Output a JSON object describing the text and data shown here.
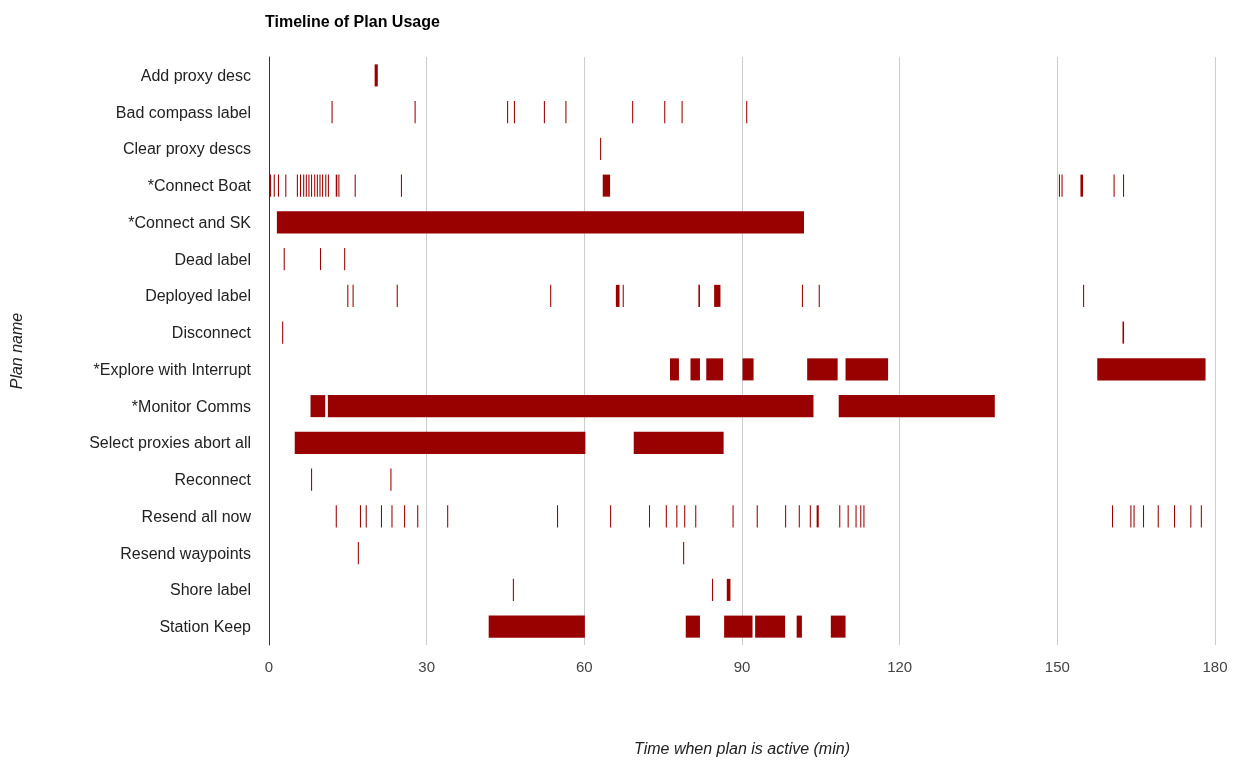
{
  "chart_data": {
    "type": "bar",
    "orientation": "horizontal",
    "title": "Timeline of Plan Usage",
    "xlabel": "Time when plan is active (min)",
    "ylabel": "Plan name",
    "categories": [
      "Add proxy desc",
      "Bad compass label",
      "Clear proxy descs",
      "*Connect Boat",
      "*Connect and SK",
      "Dead label",
      "Deployed label",
      "Disconnect",
      "*Explore with Interrupt",
      "*Monitor Comms",
      "Select proxies abort all",
      "Reconnect",
      "Resend all now",
      "Resend waypoints",
      "Shore label",
      "Station Keep"
    ],
    "xlim": [
      0,
      180
    ],
    "xticks": [
      0,
      30,
      60,
      90,
      120,
      150,
      180
    ],
    "grid": "x",
    "series": [
      {
        "color": "#990000",
        "base": [
          20.1,
          11.9,
          63.0,
          0.2,
          1.5,
          2.8,
          14.9,
          2.5,
          76.3,
          7.9,
          4.9,
          8.0,
          12.7,
          16.9,
          46.4,
          41.8
        ],
        "values": [
          0.6,
          0.2,
          0.2,
          0.2,
          100.3,
          0.2,
          0.2,
          0.2,
          1.7,
          2.8,
          55.3,
          0.2,
          0.2,
          0.2,
          0.2,
          18.3
        ]
      },
      {
        "color": "#990000",
        "base": [
          null,
          27.7,
          null,
          0.9,
          null,
          9.7,
          15.9,
          162.4,
          80.2,
          11.2,
          69.4,
          23.1,
          17.3,
          78.8,
          84.3,
          79.3
        ],
        "values": [
          null,
          0.2,
          null,
          0.2,
          null,
          0.2,
          0.2,
          0.3,
          1.8,
          92.4,
          17.1,
          0.2,
          0.2,
          0.2,
          0.2,
          2.7
        ]
      },
      {
        "color": "#990000",
        "base": [
          null,
          45.3,
          null,
          1.7,
          null,
          14.3,
          24.3,
          null,
          83.2,
          108.4,
          null,
          null,
          18.4,
          null,
          87.1,
          86.6
        ],
        "values": [
          null,
          0.2,
          null,
          0.2,
          null,
          0.2,
          0.2,
          null,
          3.2,
          29.7,
          null,
          null,
          0.2,
          null,
          0.7,
          5.4
        ]
      },
      {
        "color": "#990000",
        "base": [
          null,
          46.6,
          null,
          3.1,
          null,
          null,
          53.5,
          null,
          90.1,
          null,
          null,
          null,
          21.3,
          null,
          null,
          92.5
        ],
        "values": [
          null,
          0.2,
          null,
          0.2,
          null,
          null,
          0.2,
          null,
          2.1,
          null,
          null,
          null,
          0.2,
          null,
          null,
          5.7
        ]
      },
      {
        "color": "#990000",
        "base": [
          null,
          52.3,
          null,
          5.3,
          null,
          null,
          66.0,
          null,
          102.4,
          null,
          null,
          null,
          23.3,
          null,
          null,
          100.4
        ],
        "values": [
          null,
          0.2,
          null,
          0.2,
          null,
          null,
          0.7,
          null,
          5.8,
          null,
          null,
          null,
          0.2,
          null,
          null,
          1.0
        ]
      },
      {
        "color": "#990000",
        "base": [
          null,
          56.4,
          null,
          5.9,
          null,
          null,
          67.3,
          null,
          109.7,
          null,
          null,
          null,
          25.7,
          null,
          null,
          106.9
        ],
        "values": [
          null,
          0.2,
          null,
          0.2,
          null,
          null,
          0.2,
          null,
          8.1,
          null,
          null,
          null,
          0.2,
          null,
          null,
          2.8
        ]
      },
      {
        "color": "#990000",
        "base": [
          null,
          69.1,
          null,
          6.5,
          null,
          null,
          81.7,
          null,
          157.6,
          null,
          null,
          null,
          28.2,
          null,
          null,
          null
        ],
        "values": [
          null,
          0.2,
          null,
          0.2,
          null,
          null,
          0.3,
          null,
          20.6,
          null,
          null,
          null,
          0.2,
          null,
          null,
          null
        ]
      },
      {
        "color": "#990000",
        "base": [
          null,
          75.2,
          null,
          7.0,
          null,
          null,
          84.7,
          null,
          null,
          null,
          null,
          null,
          33.9,
          null,
          null,
          null
        ],
        "values": [
          null,
          0.2,
          null,
          0.2,
          null,
          null,
          1.2,
          null,
          null,
          null,
          null,
          null,
          0.2,
          null,
          null,
          null
        ]
      },
      {
        "color": "#990000",
        "base": [
          null,
          78.5,
          null,
          7.5,
          null,
          null,
          101.4,
          null,
          null,
          null,
          null,
          null,
          54.8,
          null,
          null,
          null
        ],
        "values": [
          null,
          0.2,
          null,
          0.2,
          null,
          null,
          0.2,
          null,
          null,
          null,
          null,
          null,
          0.2,
          null,
          null,
          null
        ]
      },
      {
        "color": "#990000",
        "base": [
          null,
          90.8,
          null,
          8.0,
          null,
          null,
          104.6,
          null,
          null,
          null,
          null,
          null,
          64.9,
          null,
          null,
          null
        ],
        "values": [
          null,
          0.2,
          null,
          0.2,
          null,
          null,
          0.2,
          null,
          null,
          null,
          null,
          null,
          0.2,
          null,
          null,
          null
        ]
      },
      {
        "color": "#990000",
        "base": [
          null,
          null,
          null,
          8.6,
          null,
          null,
          154.9,
          null,
          null,
          null,
          null,
          null,
          72.3,
          null,
          null,
          null
        ],
        "values": [
          null,
          null,
          null,
          0.2,
          null,
          null,
          0.2,
          null,
          null,
          null,
          null,
          null,
          0.2,
          null,
          null,
          null
        ]
      },
      {
        "color": "#990000",
        "base": [
          null,
          null,
          null,
          9.1,
          null,
          null,
          null,
          null,
          null,
          null,
          null,
          null,
          75.5,
          null,
          null,
          null
        ],
        "values": [
          null,
          null,
          null,
          0.2,
          null,
          null,
          null,
          null,
          null,
          null,
          null,
          null,
          0.2,
          null,
          null,
          null
        ]
      },
      {
        "color": "#990000",
        "base": [
          null,
          null,
          null,
          9.6,
          null,
          null,
          null,
          null,
          null,
          null,
          null,
          null,
          77.5,
          null,
          null,
          null
        ],
        "values": [
          null,
          null,
          null,
          0.2,
          null,
          null,
          null,
          null,
          null,
          null,
          null,
          null,
          0.2,
          null,
          null,
          null
        ]
      },
      {
        "color": "#990000",
        "base": [
          null,
          null,
          null,
          10.1,
          null,
          null,
          null,
          null,
          null,
          null,
          null,
          null,
          79.0,
          null,
          null,
          null
        ],
        "values": [
          null,
          null,
          null,
          0.2,
          null,
          null,
          null,
          null,
          null,
          null,
          null,
          null,
          0.2,
          null,
          null,
          null
        ]
      },
      {
        "color": "#990000",
        "base": [
          null,
          null,
          null,
          10.7,
          null,
          null,
          null,
          null,
          null,
          null,
          null,
          null,
          81.1,
          null,
          null,
          null
        ],
        "values": [
          null,
          null,
          null,
          0.2,
          null,
          null,
          null,
          null,
          null,
          null,
          null,
          null,
          0.2,
          null,
          null,
          null
        ]
      },
      {
        "color": "#990000",
        "base": [
          null,
          null,
          null,
          11.2,
          null,
          null,
          null,
          null,
          null,
          null,
          null,
          null,
          88.2,
          null,
          null,
          null
        ],
        "values": [
          null,
          null,
          null,
          0.2,
          null,
          null,
          null,
          null,
          null,
          null,
          null,
          null,
          0.2,
          null,
          null,
          null
        ]
      },
      {
        "color": "#990000",
        "base": [
          null,
          null,
          null,
          12.7,
          null,
          null,
          null,
          null,
          null,
          null,
          null,
          null,
          92.8,
          null,
          null,
          null
        ],
        "values": [
          null,
          null,
          null,
          0.3,
          null,
          null,
          null,
          null,
          null,
          null,
          null,
          null,
          0.2,
          null,
          null,
          null
        ]
      },
      {
        "color": "#990000",
        "base": [
          null,
          null,
          null,
          13.2,
          null,
          null,
          null,
          null,
          null,
          null,
          null,
          null,
          98.2,
          null,
          null,
          null
        ],
        "values": [
          null,
          null,
          null,
          0.2,
          null,
          null,
          null,
          null,
          null,
          null,
          null,
          null,
          0.2,
          null,
          null,
          null
        ]
      },
      {
        "color": "#990000",
        "base": [
          null,
          null,
          null,
          16.3,
          null,
          null,
          null,
          null,
          null,
          null,
          null,
          null,
          100.8,
          null,
          null,
          null
        ],
        "values": [
          null,
          null,
          null,
          0.2,
          null,
          null,
          null,
          null,
          null,
          null,
          null,
          null,
          0.2,
          null,
          null,
          null
        ]
      },
      {
        "color": "#990000",
        "base": [
          null,
          null,
          null,
          25.1,
          null,
          null,
          null,
          null,
          null,
          null,
          null,
          null,
          102.9,
          null,
          null,
          null
        ],
        "values": [
          null,
          null,
          null,
          0.2,
          null,
          null,
          null,
          null,
          null,
          null,
          null,
          null,
          0.2,
          null,
          null,
          null
        ]
      },
      {
        "color": "#990000",
        "base": [
          null,
          null,
          null,
          63.5,
          null,
          null,
          null,
          null,
          null,
          null,
          null,
          null,
          104.2,
          null,
          null,
          null
        ],
        "values": [
          null,
          null,
          null,
          1.4,
          null,
          null,
          null,
          null,
          null,
          null,
          null,
          null,
          0.4,
          null,
          null,
          null
        ]
      },
      {
        "color": "#990000",
        "base": [
          null,
          null,
          null,
          150.3,
          null,
          null,
          null,
          null,
          null,
          null,
          null,
          null,
          108.5,
          null,
          null,
          null
        ],
        "values": [
          null,
          null,
          null,
          0.2,
          null,
          null,
          null,
          null,
          null,
          null,
          null,
          null,
          0.2,
          null,
          null,
          null
        ]
      },
      {
        "color": "#990000",
        "base": [
          null,
          null,
          null,
          150.8,
          null,
          null,
          null,
          null,
          null,
          null,
          null,
          null,
          110.1,
          null,
          null,
          null
        ],
        "values": [
          null,
          null,
          null,
          0.2,
          null,
          null,
          null,
          null,
          null,
          null,
          null,
          null,
          0.2,
          null,
          null,
          null
        ]
      },
      {
        "color": "#990000",
        "base": [
          null,
          null,
          null,
          154.4,
          null,
          null,
          null,
          null,
          null,
          null,
          null,
          null,
          111.6,
          null,
          null,
          null
        ],
        "values": [
          null,
          null,
          null,
          0.5,
          null,
          null,
          null,
          null,
          null,
          null,
          null,
          null,
          0.2,
          null,
          null,
          null
        ]
      },
      {
        "color": "#990000",
        "base": [
          null,
          null,
          null,
          160.7,
          null,
          null,
          null,
          null,
          null,
          null,
          null,
          null,
          112.5,
          null,
          null,
          null
        ],
        "values": [
          null,
          null,
          null,
          0.2,
          null,
          null,
          null,
          null,
          null,
          null,
          null,
          null,
          0.2,
          null,
          null,
          null
        ]
      },
      {
        "color": "#990000",
        "base": [
          null,
          null,
          null,
          162.5,
          null,
          null,
          null,
          null,
          null,
          null,
          null,
          null,
          113.1,
          null,
          null,
          null
        ],
        "values": [
          null,
          null,
          null,
          0.2,
          null,
          null,
          null,
          null,
          null,
          null,
          null,
          null,
          0.2,
          null,
          null,
          null
        ]
      },
      {
        "color": "#990000",
        "base": [
          null,
          null,
          null,
          null,
          null,
          null,
          null,
          null,
          null,
          null,
          null,
          null,
          160.4,
          null,
          null,
          null
        ],
        "values": [
          null,
          null,
          null,
          null,
          null,
          null,
          null,
          null,
          null,
          null,
          null,
          null,
          0.2,
          null,
          null,
          null
        ]
      },
      {
        "color": "#990000",
        "base": [
          null,
          null,
          null,
          null,
          null,
          null,
          null,
          null,
          null,
          null,
          null,
          null,
          163.9,
          null,
          null,
          null
        ],
        "values": [
          null,
          null,
          null,
          null,
          null,
          null,
          null,
          null,
          null,
          null,
          null,
          null,
          0.2,
          null,
          null,
          null
        ]
      },
      {
        "color": "#990000",
        "base": [
          null,
          null,
          null,
          null,
          null,
          null,
          null,
          null,
          null,
          null,
          null,
          null,
          164.5,
          null,
          null,
          null
        ],
        "values": [
          null,
          null,
          null,
          null,
          null,
          null,
          null,
          null,
          null,
          null,
          null,
          null,
          0.2,
          null,
          null,
          null
        ]
      },
      {
        "color": "#990000",
        "base": [
          null,
          null,
          null,
          null,
          null,
          null,
          null,
          null,
          null,
          null,
          null,
          null,
          166.3,
          null,
          null,
          null
        ],
        "values": [
          null,
          null,
          null,
          null,
          null,
          null,
          null,
          null,
          null,
          null,
          null,
          null,
          0.2,
          null,
          null,
          null
        ]
      },
      {
        "color": "#990000",
        "base": [
          null,
          null,
          null,
          null,
          null,
          null,
          null,
          null,
          null,
          null,
          null,
          null,
          169.1,
          null,
          null,
          null
        ],
        "values": [
          null,
          null,
          null,
          null,
          null,
          null,
          null,
          null,
          null,
          null,
          null,
          null,
          0.2,
          null,
          null,
          null
        ]
      },
      {
        "color": "#990000",
        "base": [
          null,
          null,
          null,
          null,
          null,
          null,
          null,
          null,
          null,
          null,
          null,
          null,
          172.2,
          null,
          null,
          null
        ],
        "values": [
          null,
          null,
          null,
          null,
          null,
          null,
          null,
          null,
          null,
          null,
          null,
          null,
          0.2,
          null,
          null,
          null
        ]
      },
      {
        "color": "#990000",
        "base": [
          null,
          null,
          null,
          null,
          null,
          null,
          null,
          null,
          null,
          null,
          null,
          null,
          175.3,
          null,
          null,
          null
        ],
        "values": [
          null,
          null,
          null,
          null,
          null,
          null,
          null,
          null,
          null,
          null,
          null,
          null,
          0.2,
          null,
          null,
          null
        ]
      },
      {
        "color": "#990000",
        "base": [
          null,
          null,
          null,
          null,
          null,
          null,
          null,
          null,
          null,
          null,
          null,
          null,
          177.3,
          null,
          null,
          null
        ],
        "values": [
          null,
          null,
          null,
          null,
          null,
          null,
          null,
          null,
          null,
          null,
          null,
          null,
          0.2,
          null,
          null,
          null
        ]
      }
    ]
  }
}
